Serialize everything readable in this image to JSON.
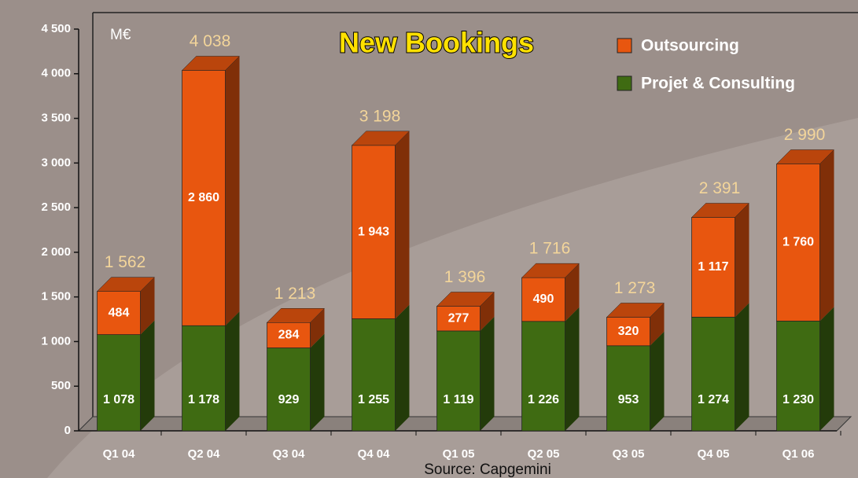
{
  "chart_data": {
    "type": "bar",
    "stacked": true,
    "title": "New Bookings",
    "unit": "M€",
    "source": "Source: Capgemini",
    "categories": [
      "Q1 04",
      "Q2 04",
      "Q3 04",
      "Q4 04",
      "Q1 05",
      "Q2 05",
      "Q3 05",
      "Q4 05",
      "Q1 06"
    ],
    "series": [
      {
        "name": "Projet & Consulting",
        "color": "#3f6b12",
        "values": [
          1078,
          1178,
          929,
          1255,
          1119,
          1226,
          953,
          1274,
          1230
        ],
        "value_labels": [
          "1 078",
          "1 178",
          "929",
          "1 255",
          "1 119",
          "1 226",
          "953",
          "1 274",
          "1 230"
        ]
      },
      {
        "name": "Outsourcing",
        "color": "#e8560f",
        "values": [
          484,
          2860,
          284,
          1943,
          277,
          490,
          320,
          1117,
          1760
        ],
        "value_labels": [
          "484",
          "2 860",
          "284",
          "1 943",
          "277",
          "490",
          "320",
          "1 117",
          "1 760"
        ]
      }
    ],
    "totals": [
      1562,
      4038,
      1213,
      3198,
      1396,
      1716,
      1273,
      2391,
      2990
    ],
    "total_labels": [
      "1 562",
      "4 038",
      "1 213",
      "3 198",
      "1 396",
      "1 716",
      "1 273",
      "2 391",
      "2 990"
    ],
    "ylim": [
      0,
      4500
    ],
    "yticks": [
      0,
      500,
      {
        "value": 1000,
        "label": "1 000"
      },
      {
        "value": 1500,
        "label": "1 500"
      },
      {
        "value": 2000,
        "label": "2 000"
      },
      {
        "value": 2500,
        "label": "2 500"
      },
      {
        "value": 3000,
        "label": "3 000"
      },
      {
        "value": 3500,
        "label": "3 500"
      },
      {
        "value": 4000,
        "label": "4 000"
      },
      {
        "value": 4500,
        "label": "4 500"
      }
    ]
  }
}
